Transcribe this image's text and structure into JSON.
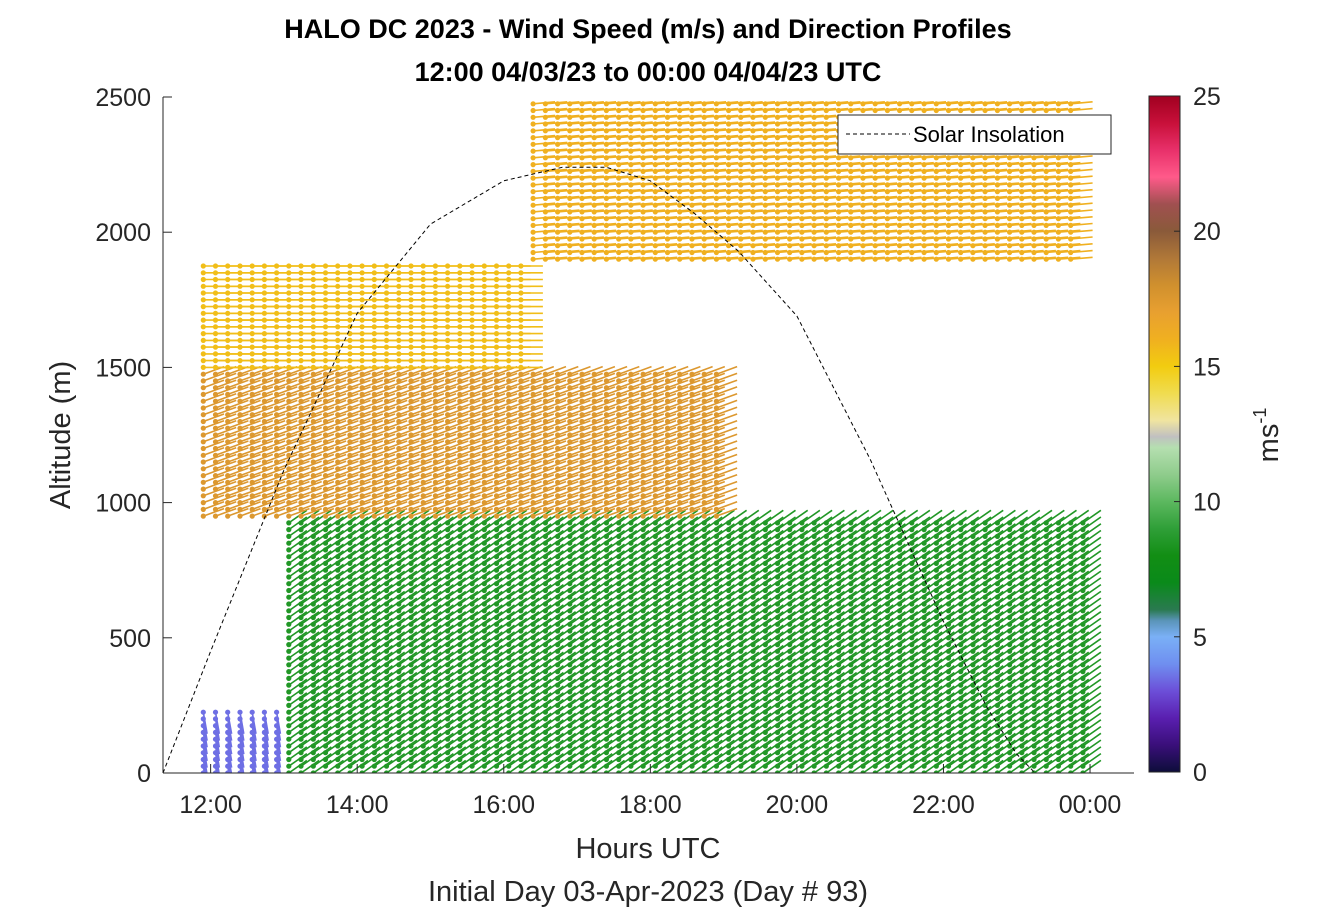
{
  "chart_data": {
    "type": "wind_barb_profile",
    "title": "HALO DC 2023 - Wind Speed (m/s) and Direction Profiles",
    "subtitle": "12:00 04/03/23 to 00:00 04/04/23  UTC",
    "xlabel": "Hours UTC",
    "xlabel2": "Initial Day 03-Apr-2023 (Day # 93)",
    "ylabel": "Altitude (m)",
    "colorbar_label": "ms",
    "colorbar_label_sup": "-1",
    "x_ticks": [
      {
        "value": 12,
        "label": "12:00"
      },
      {
        "value": 14,
        "label": "14:00"
      },
      {
        "value": 16,
        "label": "16:00"
      },
      {
        "value": 18,
        "label": "18:00"
      },
      {
        "value": 20,
        "label": "20:00"
      },
      {
        "value": 22,
        "label": "22:00"
      },
      {
        "value": 24,
        "label": "00:00"
      }
    ],
    "xlim": [
      11.35,
      24.6
    ],
    "y_ticks": [
      0,
      500,
      1000,
      1500,
      2000,
      2500
    ],
    "ylim": [
      0,
      2500
    ],
    "colorbar_ticks": [
      0,
      5,
      10,
      15,
      20,
      25
    ],
    "colorbar_range": [
      0,
      25
    ],
    "colorbar_colors": [
      [
        0,
        "#0d0d3a"
      ],
      [
        1,
        "#3a0f7a"
      ],
      [
        2,
        "#5a1fb0"
      ],
      [
        3,
        "#6c4fd8"
      ],
      [
        4,
        "#6f8ff0"
      ],
      [
        5,
        "#7ab0f6"
      ],
      [
        5.6,
        "#5a94b8"
      ],
      [
        6,
        "#2a7a50"
      ],
      [
        7,
        "#0a8a1a"
      ],
      [
        8,
        "#128e14"
      ],
      [
        9,
        "#2f9f38"
      ],
      [
        10,
        "#5cb85f"
      ],
      [
        11,
        "#8fcc8c"
      ],
      [
        12,
        "#b5dfb0"
      ],
      [
        12.4,
        "#c0c0c0"
      ],
      [
        13,
        "#f0e4a0"
      ],
      [
        14,
        "#f0dc50"
      ],
      [
        15,
        "#f2cc10"
      ],
      [
        16,
        "#f0b020"
      ],
      [
        17,
        "#e8a030"
      ],
      [
        18,
        "#d0902e"
      ],
      [
        19,
        "#b07838"
      ],
      [
        20,
        "#8a5a3a"
      ],
      [
        21,
        "#a05050"
      ],
      [
        22,
        "#ff5a8a"
      ],
      [
        23,
        "#e8306a"
      ],
      [
        24,
        "#c8103a"
      ],
      [
        25,
        "#a00020"
      ]
    ],
    "legend": {
      "entries": [
        "Solar Insolation"
      ],
      "placement": "top-right"
    },
    "insolation_curve": {
      "x": [
        11.35,
        12.0,
        13.0,
        14.0,
        15.0,
        16.0,
        16.8,
        17.4,
        18.0,
        18.6,
        19.2,
        20.0,
        21.0,
        22.0,
        22.6,
        23.0,
        23.25,
        23.45,
        24.5
      ],
      "y": [
        0,
        450,
        1120,
        1700,
        2030,
        2190,
        2240,
        2240,
        2190,
        2070,
        1930,
        1690,
        1160,
        560,
        240,
        70,
        0,
        0,
        0
      ]
    },
    "profiles": {
      "time_start": 11.9,
      "time_end": 23.9,
      "interval_hours": 0.1667,
      "altitude_bin_m": 25,
      "speed_regimes": [
        {
          "alt_range": [
            0,
            250
          ],
          "time_range": [
            11.9,
            13.0
          ],
          "speed": 3.5,
          "direction_deg": 350
        },
        {
          "alt_range": [
            0,
            950
          ],
          "time_range": [
            13.0,
            24.0
          ],
          "speed": 8.5,
          "direction_deg": 235
        },
        {
          "alt_range": [
            950,
            1500
          ],
          "time_range": [
            11.9,
            19.0
          ],
          "speed": 17.5,
          "direction_deg": 250
        },
        {
          "alt_range": [
            1500,
            1900
          ],
          "time_range": [
            11.9,
            16.3
          ],
          "speed": 15.5,
          "direction_deg": 270
        },
        {
          "alt_range": [
            1900,
            2500
          ],
          "time_range": [
            16.3,
            23.9
          ],
          "speed": 16.0,
          "direction_deg": 265
        }
      ]
    }
  }
}
